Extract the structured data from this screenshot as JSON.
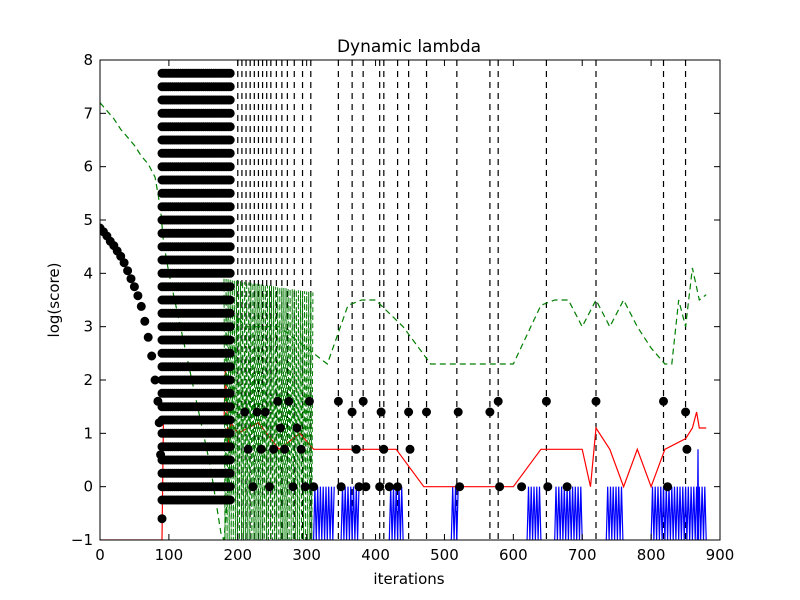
{
  "chart_data": {
    "type": "line",
    "title": "Dynamic lambda",
    "xlabel": "iterations",
    "ylabel": "log(score)",
    "xlim": [
      0,
      900
    ],
    "ylim": [
      -1,
      8
    ],
    "x_ticks": [
      0,
      100,
      200,
      300,
      400,
      500,
      600,
      700,
      800,
      900
    ],
    "y_ticks": [
      -1,
      0,
      1,
      2,
      3,
      4,
      5,
      6,
      7,
      8
    ],
    "grid": false,
    "colors": {
      "black": "#000000",
      "green": "#007f00",
      "red": "#ff0000",
      "blue": "#0000ff"
    },
    "restart_lines_x": [
      200,
      206,
      212,
      218,
      224,
      230,
      236,
      242,
      248,
      256,
      264,
      272,
      282,
      294,
      306,
      346,
      366,
      382,
      406,
      412,
      432,
      448,
      474,
      518,
      566,
      578,
      648,
      720,
      818,
      850
    ],
    "series": [
      {
        "style": "black-dots",
        "x": [
          0,
          5,
          10,
          15,
          20,
          25,
          30,
          35,
          40,
          45,
          50,
          55,
          60,
          65,
          70,
          75,
          80,
          84,
          86,
          88,
          90
        ],
        "values": [
          4.85,
          4.78,
          4.7,
          4.6,
          4.52,
          4.42,
          4.32,
          4.2,
          4.05,
          3.9,
          3.75,
          3.58,
          3.38,
          3.1,
          2.8,
          2.45,
          2.0,
          1.6,
          1.2,
          0.6,
          -0.6
        ]
      },
      {
        "style": "black-dots-dense-columns",
        "x_start": 90,
        "x_end": 190,
        "x_step": 3,
        "y_values": [
          -0.25,
          0,
          0.25,
          0.5,
          0.75,
          1.0,
          1.25,
          1.5,
          1.75,
          2.0,
          2.25,
          2.5,
          2.75,
          3.0,
          3.25,
          3.5,
          3.75,
          4.0,
          4.25,
          4.5,
          4.75,
          5.0,
          5.25,
          5.5,
          5.75,
          6.0,
          6.25,
          6.5,
          6.75,
          7.0,
          7.25,
          7.5,
          7.75
        ]
      },
      {
        "style": "black-dots-sparse",
        "points": [
          [
            210,
            1.4
          ],
          [
            215,
            0.7
          ],
          [
            222,
            0
          ],
          [
            228,
            1.4
          ],
          [
            234,
            0.7
          ],
          [
            240,
            1.4
          ],
          [
            246,
            0
          ],
          [
            252,
            0.7
          ],
          [
            258,
            1.6
          ],
          [
            262,
            1.1
          ],
          [
            268,
            0.7
          ],
          [
            274,
            1.6
          ],
          [
            280,
            0
          ],
          [
            286,
            1.1
          ],
          [
            292,
            0.7
          ],
          [
            298,
            0
          ],
          [
            304,
            1.6
          ],
          [
            310,
            0
          ],
          [
            346,
            1.6
          ],
          [
            350,
            0
          ],
          [
            366,
            1.4
          ],
          [
            372,
            0.7
          ],
          [
            376,
            0
          ],
          [
            382,
            1.6
          ],
          [
            386,
            0
          ],
          [
            406,
            0
          ],
          [
            408,
            1.4
          ],
          [
            412,
            0.7
          ],
          [
            420,
            0
          ],
          [
            432,
            0
          ],
          [
            448,
            1.4
          ],
          [
            450,
            0.7
          ],
          [
            474,
            1.4
          ],
          [
            520,
            1.4
          ],
          [
            522,
            0
          ],
          [
            566,
            1.4
          ],
          [
            578,
            1.6
          ],
          [
            580,
            0
          ],
          [
            612,
            0
          ],
          [
            648,
            1.6
          ],
          [
            650,
            0
          ],
          [
            678,
            0
          ],
          [
            720,
            1.6
          ],
          [
            818,
            1.6
          ],
          [
            824,
            0
          ],
          [
            850,
            1.4
          ],
          [
            852,
            0.7
          ]
        ]
      },
      {
        "style": "green-dashed",
        "x": [
          0,
          10,
          20,
          30,
          40,
          50,
          60,
          70,
          80,
          88,
          92,
          100,
          120,
          140,
          160,
          176,
          180,
          185,
          190,
          200,
          210,
          230,
          260,
          300,
          330,
          360,
          380,
          400,
          440,
          480,
          520,
          560,
          600,
          640,
          660,
          680,
          700,
          720,
          740,
          760,
          780,
          800,
          820,
          830,
          840,
          850,
          860,
          870,
          880
        ],
        "values": [
          7.2,
          7.05,
          6.9,
          6.7,
          6.55,
          6.4,
          6.2,
          6.05,
          5.8,
          5.2,
          4.6,
          4.0,
          2.8,
          1.6,
          0.4,
          -0.9,
          -1.0,
          -0.2,
          1.2,
          3.2,
          3.0,
          3.0,
          3.0,
          2.6,
          2.3,
          3.4,
          3.5,
          3.5,
          3.0,
          2.3,
          2.3,
          2.3,
          2.3,
          3.4,
          3.5,
          3.5,
          3.0,
          3.5,
          3.0,
          3.5,
          3.0,
          2.6,
          2.3,
          2.3,
          3.5,
          3.0,
          4.1,
          3.5,
          3.6
        ]
      },
      {
        "style": "red-line",
        "x": [
          0,
          90,
          92,
          180,
          182,
          186,
          190,
          200,
          230,
          260,
          290,
          310,
          340,
          390,
          430,
          470,
          520,
          560,
          600,
          640,
          660,
          700,
          712,
          720,
          740,
          760,
          780,
          800,
          820,
          850,
          860,
          866,
          870,
          880
        ],
        "values": [
          -1,
          -1,
          1.2,
          1.2,
          2.3,
          0.8,
          1.2,
          1.0,
          1.2,
          0.7,
          1.0,
          0.7,
          0.7,
          0.7,
          0.7,
          0,
          0,
          0,
          0,
          0.7,
          0.7,
          0.7,
          0,
          1.1,
          0.7,
          0,
          0.7,
          0,
          0.7,
          0.9,
          1.1,
          1.4,
          1.1,
          1.1
        ]
      },
      {
        "style": "blue-oscillation",
        "segments": [
          [
            310,
            340
          ],
          [
            350,
            376
          ],
          [
            420,
            440
          ],
          [
            510,
            520
          ],
          [
            620,
            640
          ],
          [
            660,
            700
          ],
          [
            735,
            760
          ],
          [
            800,
            880
          ]
        ],
        "low": -1,
        "high": 0,
        "peak": [
          868,
          0.7
        ]
      }
    ]
  }
}
